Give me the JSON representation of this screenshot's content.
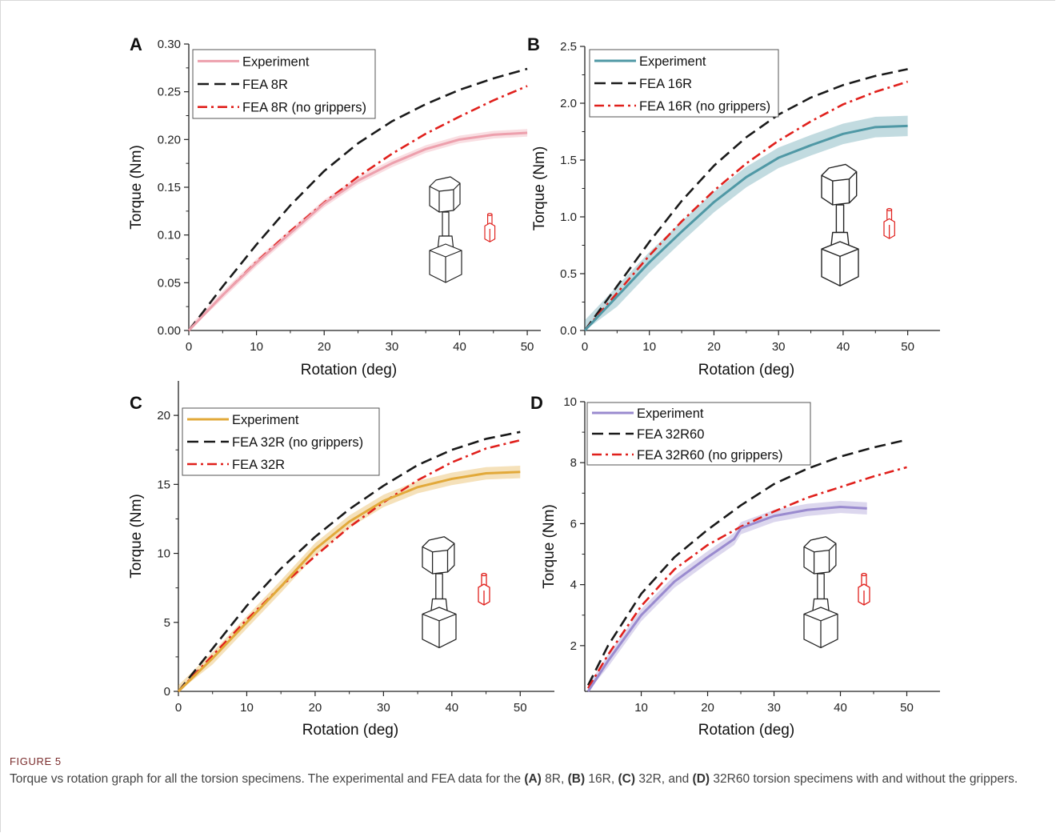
{
  "figure": {
    "label": "FIGURE 5",
    "caption": {
      "pre": "Torque vs rotation graph for all the torsion specimens. The experimental and FEA data for the ",
      "a_tag": "(A)",
      "a_txt": " 8R, ",
      "b_tag": "(B)",
      "b_txt": " 16R, ",
      "c_tag": "(C)",
      "c_txt": " 32R, and ",
      "d_tag": "(D)",
      "d_txt": " 32R60 torsion specimens with and without the grippers."
    }
  },
  "colors": {
    "fea": "#1a1a1a",
    "fea_ng": "#e0201c",
    "icon_red": "#e0201c"
  },
  "chart_data": [
    {
      "panel": "A",
      "type": "line",
      "xlabel": "Rotation (deg)",
      "ylabel": "Torque (Nm)",
      "xlim": [
        0,
        52
      ],
      "ylim": [
        0,
        0.3
      ],
      "xticks": [
        "0",
        "10",
        "20",
        "30",
        "40",
        "50"
      ],
      "yticks": [
        "0.00",
        "0.05",
        "0.10",
        "0.15",
        "0.20",
        "0.25",
        "0.30"
      ],
      "legend": "top-left",
      "series": [
        {
          "name": "Experiment",
          "style": "solid",
          "color": "#eda0ad",
          "band": 0.004,
          "x": [
            0,
            5,
            10,
            15,
            20,
            25,
            30,
            35,
            40,
            45,
            50
          ],
          "y": [
            0,
            0.037,
            0.071,
            0.102,
            0.133,
            0.157,
            0.175,
            0.19,
            0.2,
            0.205,
            0.207
          ]
        },
        {
          "name": "FEA 8R",
          "style": "dash",
          "color": "#1a1a1a",
          "x": [
            0,
            5,
            10,
            15,
            20,
            25,
            30,
            35,
            40,
            45,
            50
          ],
          "y": [
            0,
            0.046,
            0.09,
            0.131,
            0.167,
            0.196,
            0.219,
            0.237,
            0.252,
            0.264,
            0.274
          ]
        },
        {
          "name": "FEA 8R (no grippers)",
          "style": "dashdot",
          "color": "#e0201c",
          "x": [
            0,
            5,
            10,
            15,
            20,
            25,
            30,
            35,
            40,
            45,
            50
          ],
          "y": [
            0,
            0.037,
            0.072,
            0.104,
            0.134,
            0.161,
            0.185,
            0.206,
            0.224,
            0.241,
            0.256
          ]
        }
      ]
    },
    {
      "panel": "B",
      "type": "line",
      "xlabel": "Rotation (deg)",
      "ylabel": "Torque (Nm)",
      "xlim": [
        0,
        55
      ],
      "ylim": [
        0,
        2.5
      ],
      "xticks": [
        "0",
        "10",
        "20",
        "30",
        "40",
        "50"
      ],
      "yticks": [
        "0.0",
        "0.5",
        "1.0",
        "1.5",
        "2.0",
        "2.5"
      ],
      "legend": "top-left",
      "series": [
        {
          "name": "Experiment",
          "style": "solid",
          "color": "#4f98a5",
          "band": 0.09,
          "x": [
            0,
            5,
            10,
            15,
            20,
            25,
            30,
            35,
            40,
            45,
            50
          ],
          "y": [
            0,
            0.3,
            0.6,
            0.87,
            1.13,
            1.35,
            1.52,
            1.63,
            1.73,
            1.79,
            1.8
          ]
        },
        {
          "name": "FEA 16R",
          "style": "dash",
          "color": "#1a1a1a",
          "x": [
            0,
            5,
            10,
            15,
            20,
            25,
            30,
            35,
            40,
            45,
            50
          ],
          "y": [
            0,
            0.39,
            0.78,
            1.14,
            1.45,
            1.7,
            1.9,
            2.05,
            2.16,
            2.24,
            2.3
          ]
        },
        {
          "name": "FEA 16R (no grippers)",
          "style": "dashdot",
          "color": "#e0201c",
          "x": [
            0,
            5,
            10,
            15,
            20,
            25,
            30,
            35,
            40,
            45,
            50
          ],
          "y": [
            0,
            0.33,
            0.66,
            0.96,
            1.23,
            1.47,
            1.67,
            1.84,
            1.99,
            2.1,
            2.19
          ]
        }
      ]
    },
    {
      "panel": "C",
      "type": "line",
      "xlabel": "Rotation (deg)",
      "ylabel": "Torque (Nm)",
      "xlim": [
        0,
        55
      ],
      "ylim": [
        0,
        22.5
      ],
      "xticks": [
        "0",
        "10",
        "20",
        "30",
        "40",
        "50"
      ],
      "yticks": [
        "0",
        "5",
        "10",
        "15",
        "20"
      ],
      "legend": "top-left",
      "series": [
        {
          "name": "Experiment",
          "style": "solid",
          "color": "#e2a93a",
          "band": 0.45,
          "x": [
            0,
            5,
            10,
            15,
            20,
            25,
            30,
            35,
            40,
            45,
            50
          ],
          "y": [
            0,
            2.4,
            5.0,
            7.6,
            10.3,
            12.3,
            13.8,
            14.8,
            15.4,
            15.8,
            15.9
          ]
        },
        {
          "name": "FEA 32R (no grippers)",
          "style": "dash",
          "color": "#1a1a1a",
          "x": [
            0,
            5,
            10,
            15,
            20,
            25,
            30,
            35,
            40,
            45,
            50
          ],
          "y": [
            0,
            3.1,
            6.2,
            8.9,
            11.2,
            13.2,
            14.9,
            16.4,
            17.5,
            18.3,
            18.8
          ]
        },
        {
          "name": "FEA 32R",
          "style": "dashdot",
          "color": "#e0201c",
          "x": [
            0,
            5,
            10,
            15,
            20,
            25,
            30,
            35,
            40,
            45,
            50
          ],
          "y": [
            0,
            2.6,
            5.2,
            7.6,
            9.8,
            11.9,
            13.7,
            15.3,
            16.6,
            17.6,
            18.2
          ]
        }
      ]
    },
    {
      "panel": "D",
      "type": "line",
      "xlabel": "Rotation (deg)",
      "ylabel": "Torque (Nm)",
      "xlim": [
        1.5,
        55
      ],
      "ylim": [
        0.5,
        10
      ],
      "xticks": [
        "10",
        "20",
        "30",
        "40",
        "50"
      ],
      "yticks": [
        "2",
        "4",
        "6",
        "8",
        "10"
      ],
      "legend": "top-left",
      "series": [
        {
          "name": "Experiment",
          "style": "solid",
          "color": "#9a8bcf",
          "band": 0.2,
          "x": [
            2,
            5,
            10,
            15,
            20,
            24,
            25,
            30,
            35,
            40,
            44
          ],
          "y": [
            0.5,
            1.5,
            3.0,
            4.1,
            4.9,
            5.5,
            5.85,
            6.25,
            6.45,
            6.55,
            6.5
          ]
        },
        {
          "name": "FEA 32R60",
          "style": "dash",
          "color": "#1a1a1a",
          "x": [
            2,
            5,
            10,
            15,
            20,
            25,
            30,
            35,
            40,
            45,
            50
          ],
          "y": [
            0.7,
            2.0,
            3.7,
            4.9,
            5.8,
            6.6,
            7.3,
            7.8,
            8.2,
            8.5,
            8.75
          ]
        },
        {
          "name": "FEA 32R60 (no grippers)",
          "style": "dashdot",
          "color": "#e0201c",
          "x": [
            2,
            5,
            10,
            15,
            20,
            25,
            30,
            35,
            40,
            45,
            50
          ],
          "y": [
            0.6,
            1.7,
            3.3,
            4.5,
            5.3,
            5.9,
            6.4,
            6.85,
            7.2,
            7.55,
            7.85
          ]
        }
      ]
    }
  ]
}
